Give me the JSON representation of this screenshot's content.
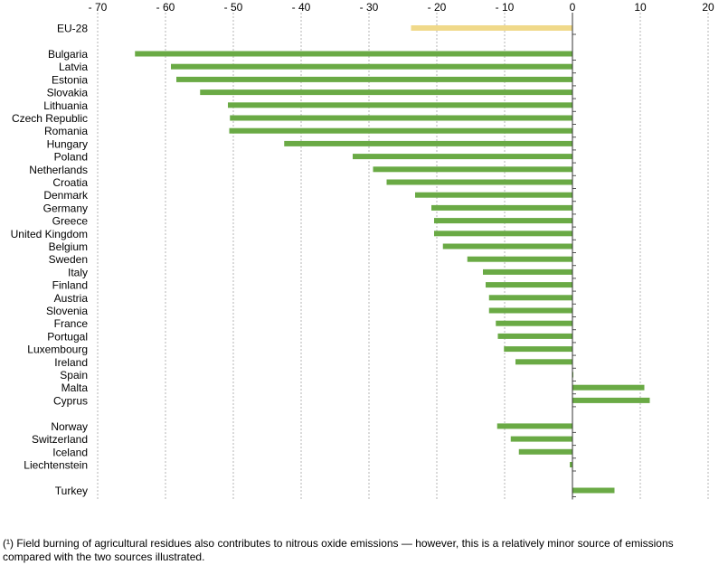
{
  "chart_data": {
    "type": "bar",
    "orientation": "horizontal",
    "xlim": [
      -70,
      20
    ],
    "x_ticks": [
      -70,
      -60,
      -50,
      -40,
      -30,
      -20,
      -10,
      0,
      10,
      20
    ],
    "x_tick_labels": [
      "- 70",
      "- 60",
      "- 50",
      "- 40",
      "- 30",
      "- 20",
      "- 10",
      "0",
      "10",
      "20"
    ],
    "grid": "vertical dashed",
    "colors": {
      "aggregate": "#f0d98a",
      "country": "#6aaa45"
    },
    "categories": [
      "EU-28",
      "Bulgaria",
      "Latvia",
      "Estonia",
      "Slovakia",
      "Lithuania",
      "Czech Republic",
      "Romania",
      "Hungary",
      "Poland",
      "Netherlands",
      "Croatia",
      "Denmark",
      "Germany",
      "Greece",
      "United Kingdom",
      "Belgium",
      "Sweden",
      "Italy",
      "Finland",
      "Austria",
      "Slovenia",
      "France",
      "Portugal",
      "Luxembourg",
      "Ireland",
      "Spain",
      "Malta",
      "Cyprus",
      "Norway",
      "Switzerland",
      "Iceland",
      "Liechtenstein",
      "Turkey"
    ],
    "values": [
      -23.8,
      -64.5,
      -59.2,
      -58.4,
      -54.9,
      -50.8,
      -50.5,
      -50.6,
      -42.5,
      -32.4,
      -29.4,
      -27.4,
      -23.2,
      -20.8,
      -20.4,
      -20.4,
      -19.1,
      -15.5,
      -13.2,
      -12.8,
      -12.3,
      -12.3,
      -11.3,
      -11.0,
      -10.1,
      -8.4,
      0.1,
      10.6,
      11.4,
      -11.1,
      -9.1,
      -7.9,
      -0.4,
      6.2
    ],
    "aggregate_flags": [
      true,
      false,
      false,
      false,
      false,
      false,
      false,
      false,
      false,
      false,
      false,
      false,
      false,
      false,
      false,
      false,
      false,
      false,
      false,
      false,
      false,
      false,
      false,
      false,
      false,
      false,
      false,
      false,
      false,
      false,
      false,
      false,
      false,
      false
    ]
  },
  "footnote": "(¹) Field burning of agricultural residues also contributes to nitrous oxide emissions — however, this is a relatively minor source of emissions compared with the two sources illustrated."
}
